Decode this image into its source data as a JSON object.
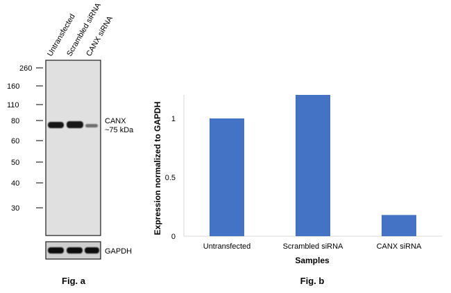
{
  "fig_a": {
    "caption": "Fig. a",
    "lane_labels": [
      "Untransfected",
      "Scrambled siRNA",
      "CANX siRNA"
    ],
    "mw_markers": [
      "260",
      "160",
      "110",
      "80",
      "60",
      "50",
      "40",
      "30"
    ],
    "target_label": "CANX",
    "target_size": "~75 kDa",
    "loading_control": "GAPDH"
  },
  "fig_b": {
    "caption": "Fig. b"
  },
  "chart_data": {
    "type": "bar",
    "categories": [
      "Untransfected",
      "Scrambled siRNA",
      "CANX siRNA"
    ],
    "values": [
      1.0,
      1.2,
      0.18
    ],
    "xlabel": "Samples",
    "ylabel": "Expression normalized to GAPDH",
    "ylim": [
      0,
      1.2
    ],
    "yticks": [
      "0",
      "0.5",
      "1"
    ],
    "ytick_values": [
      0,
      0.5,
      1
    ],
    "grid": false,
    "bar_color": "#4472C4"
  }
}
